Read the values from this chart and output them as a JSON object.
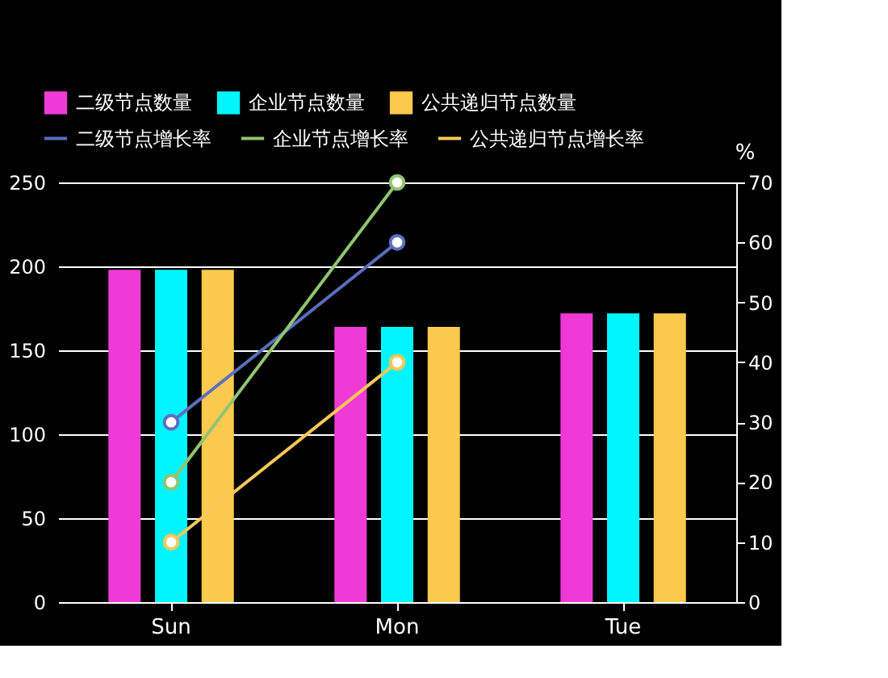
{
  "chart_data": {
    "type": "bar",
    "categories": [
      "Sun",
      "Mon",
      "Tue"
    ],
    "y2label": "%",
    "series": [
      {
        "name": "二级节点数量",
        "color": "#f03ad8",
        "values": [
          198,
          164,
          172
        ]
      },
      {
        "name": "企业节点数量",
        "color": "#00f6ff",
        "values": [
          198,
          164,
          172
        ]
      },
      {
        "name": "公共递归节点数量",
        "color": "#fcc94f",
        "values": [
          198,
          164,
          172
        ]
      },
      {
        "name": "二级节点增长率",
        "type": "line",
        "axis": "y2",
        "color": "#5b6fc0",
        "values": [
          30,
          60,
          null
        ]
      },
      {
        "name": "企业节点增长率",
        "type": "line",
        "axis": "y2",
        "color": "#91c470",
        "values": [
          20,
          70,
          null
        ]
      },
      {
        "name": "公共递归节点增长率",
        "type": "line",
        "axis": "y2",
        "color": "#f9c858",
        "values": [
          10,
          40,
          null
        ]
      }
    ],
    "ylim": [
      0,
      250
    ],
    "yticks": [
      0,
      50,
      100,
      150,
      200,
      250
    ],
    "y2lim": [
      0,
      70
    ],
    "y2ticks": [
      0,
      10,
      20,
      30,
      40,
      50,
      60,
      70
    ],
    "grid": "y",
    "legend": "top",
    "marker": "circle"
  }
}
